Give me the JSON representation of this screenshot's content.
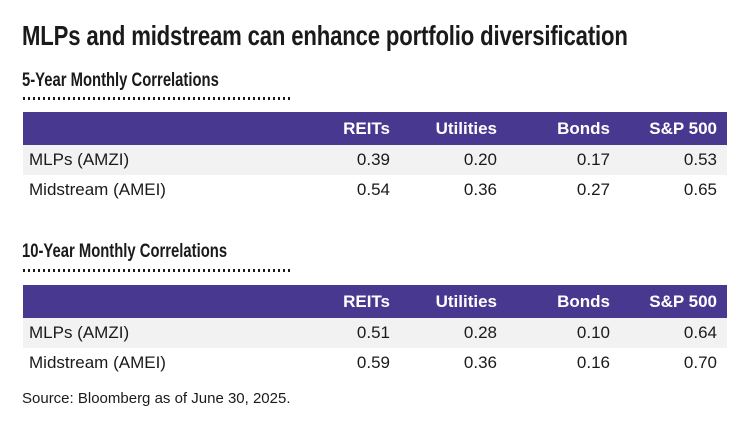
{
  "title": "MLPs and midstream can enhance portfolio diversification",
  "source": "Source: Bloomberg as of June 30, 2025.",
  "colors": {
    "header_bg": "#483890",
    "header_text": "#ffffff",
    "alt_row_bg": "#f2f2f2",
    "text": "#1a1a1a"
  },
  "chart_data": [
    {
      "type": "table",
      "title": "5-Year Monthly Correlations",
      "columns": [
        "REITs",
        "Utilities",
        "Bonds",
        "S&P 500"
      ],
      "row_labels": [
        "MLPs (AMZI)",
        "Midstream (AMEI)"
      ],
      "rows": [
        [
          "0.39",
          "0.20",
          "0.17",
          "0.53"
        ],
        [
          "0.54",
          "0.36",
          "0.27",
          "0.65"
        ]
      ],
      "layout": {
        "grid": false,
        "header_style": "solid-purple",
        "divider": "dotted"
      }
    },
    {
      "type": "table",
      "title": "10-Year Monthly Correlations",
      "columns": [
        "REITs",
        "Utilities",
        "Bonds",
        "S&P 500"
      ],
      "row_labels": [
        "MLPs (AMZI)",
        "Midstream (AMEI)"
      ],
      "rows": [
        [
          "0.51",
          "0.28",
          "0.10",
          "0.64"
        ],
        [
          "0.59",
          "0.36",
          "0.16",
          "0.70"
        ]
      ],
      "layout": {
        "grid": false,
        "header_style": "solid-purple",
        "divider": "dotted"
      }
    }
  ]
}
